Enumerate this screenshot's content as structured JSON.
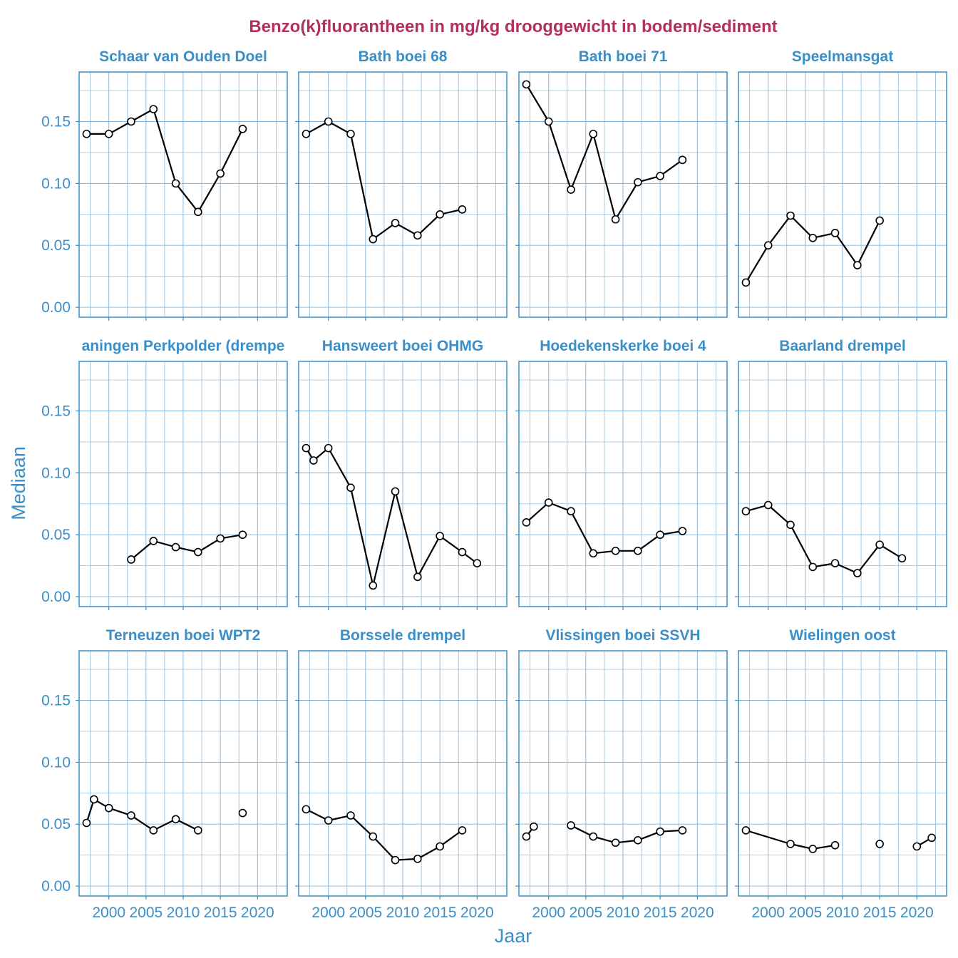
{
  "chart_data": {
    "type": "line",
    "title": "Benzo(k)fluorantheen in mg/kg drooggewicht in bodem/sediment",
    "xlabel": "Jaar",
    "ylabel": "Mediaan",
    "xlim": [
      1996,
      2024
    ],
    "ylim": [
      -0.008,
      0.19
    ],
    "x_ticks": [
      2000,
      2005,
      2010,
      2015,
      2020
    ],
    "x_tick_labels": [
      "2000",
      "2005",
      "2010",
      "2015",
      "2020"
    ],
    "y_ticks": [
      0,
      0.05,
      0.1,
      0.15
    ],
    "y_tick_labels": [
      "0.00",
      "0.05",
      "0.10",
      "0.15"
    ],
    "colors": {
      "title": "#B03060",
      "axis": "#3A8FC8",
      "grid": "#7FB3DA",
      "line": "#000000",
      "marker_fill": "#FFFFFF"
    },
    "panels": [
      {
        "name": "Schaar van Ouden Doel",
        "x": [
          1997,
          2000,
          2003,
          2006,
          2009,
          2012,
          2015,
          2018
        ],
        "y": [
          0.14,
          0.14,
          0.15,
          0.16,
          0.1,
          0.077,
          0.108,
          0.144
        ]
      },
      {
        "name": "Bath boei 68",
        "x": [
          1997,
          2000,
          2003,
          2006,
          2009,
          2012,
          2015,
          2018
        ],
        "y": [
          0.14,
          0.15,
          0.14,
          0.055,
          0.068,
          0.058,
          0.075,
          0.079
        ]
      },
      {
        "name": "Bath boei 71",
        "x": [
          1997,
          2000,
          2003,
          2006,
          2009,
          2012,
          2015,
          2018
        ],
        "y": [
          0.18,
          0.15,
          0.095,
          0.14,
          0.071,
          0.101,
          0.106,
          0.119
        ]
      },
      {
        "name": "Speelmansgat",
        "x": [
          1997,
          2000,
          2003,
          2006,
          2009,
          2012,
          2015
        ],
        "y": [
          0.02,
          0.05,
          0.074,
          0.056,
          0.06,
          0.034,
          0.07
        ]
      },
      {
        "name": "Hansweert boei OHMG",
        "x": [
          1997,
          1998,
          2000,
          2003,
          2006,
          2009,
          2012,
          2015,
          2018,
          2020
        ],
        "y": [
          0.12,
          0.11,
          0.12,
          0.088,
          0.009,
          0.085,
          0.016,
          0.049,
          0.036,
          0.027
        ]
      },
      {
        "name": "Hoedekenskerke boei 4",
        "x": [
          1997,
          2000,
          2003,
          2006,
          2009,
          2012,
          2015,
          2018
        ],
        "y": [
          0.06,
          0.076,
          0.069,
          0.035,
          0.037,
          0.037,
          0.05,
          0.053
        ]
      },
      {
        "name": "Baarland drempel",
        "x": [
          1997,
          2000,
          2003,
          2006,
          2009,
          2012,
          2015,
          2018
        ],
        "y": [
          0.069,
          0.074,
          0.058,
          0.024,
          0.027,
          0.019,
          0.042,
          0.031
        ]
      },
      {
        "name": "Terneuzen boei WPT2",
        "x": [
          1997,
          1998,
          2000,
          2003,
          2006,
          2009,
          2012,
          2018
        ],
        "y": [
          0.051,
          0.07,
          0.063,
          0.057,
          0.045,
          0.054,
          0.045,
          0.059
        ],
        "segments": [
          [
            0,
            6
          ],
          [
            7,
            7
          ]
        ]
      },
      {
        "name": "Borssele drempel",
        "x": [
          1997,
          2000,
          2003,
          2006,
          2009,
          2012,
          2015,
          2018
        ],
        "y": [
          0.062,
          0.053,
          0.057,
          0.04,
          0.021,
          0.022,
          0.032,
          0.045
        ]
      },
      {
        "name": "Vlissingen boei SSVH",
        "x": [
          1997,
          1998,
          2003,
          2006,
          2009,
          2012,
          2015,
          2018
        ],
        "y": [
          0.04,
          0.048,
          0.049,
          0.04,
          0.035,
          0.037,
          0.044,
          0.045
        ],
        "segments": [
          [
            0,
            1
          ],
          [
            2,
            7
          ]
        ]
      },
      {
        "name": "Wielingen oost",
        "x": [
          1997,
          2003,
          2006,
          2009,
          2015,
          2020,
          2022
        ],
        "y": [
          0.045,
          0.034,
          0.03,
          0.033,
          0.034,
          0.032,
          0.039
        ],
        "segments": [
          [
            0,
            3
          ],
          [
            4,
            4
          ],
          [
            5,
            6
          ]
        ]
      }
    ],
    "partial_panel": {
      "label": "aningen Perkpolder (drempe",
      "x": [
        2003,
        2006,
        2009,
        2012,
        2015,
        2018
      ],
      "y": [
        0.03,
        0.045,
        0.04,
        0.036,
        0.047,
        0.05
      ]
    }
  }
}
